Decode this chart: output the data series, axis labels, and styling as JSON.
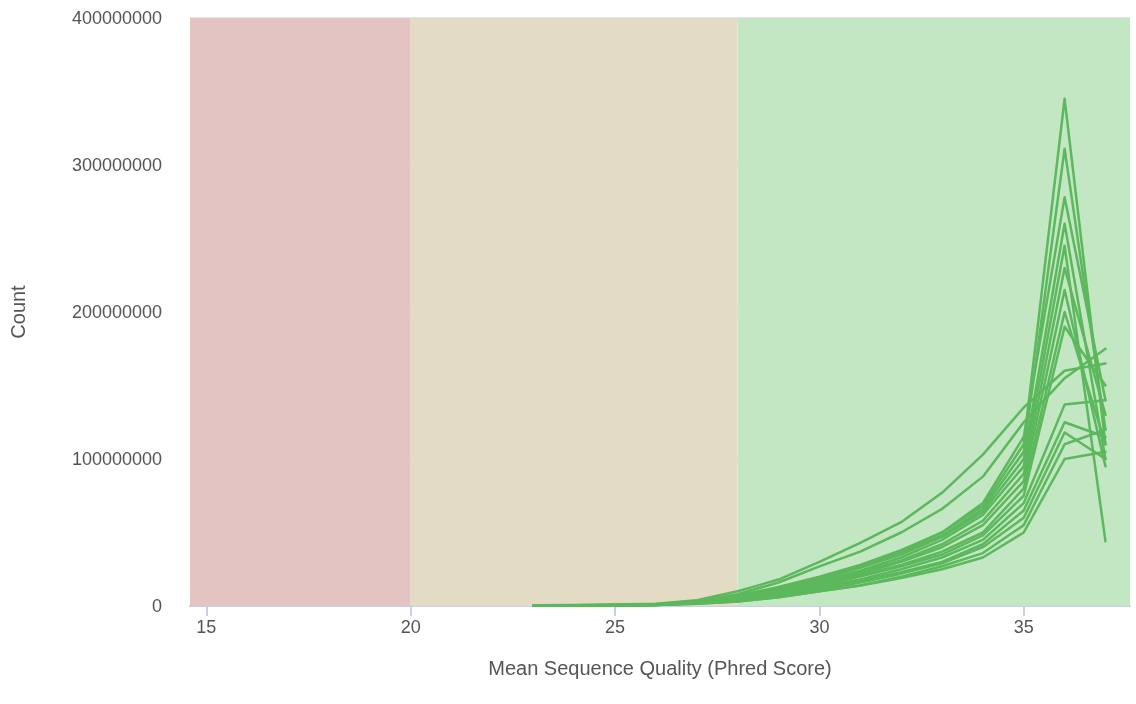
{
  "chart_data": {
    "type": "line",
    "xlabel": "Mean Sequence Quality (Phred Score)",
    "ylabel": "Count",
    "xlim": [
      14.6,
      37.6
    ],
    "xticks": [
      15,
      20,
      25,
      30,
      35
    ],
    "ylim": [
      0,
      400000000
    ],
    "yticks": [
      0,
      100000000,
      200000000,
      300000000,
      400000000
    ],
    "grid": "y",
    "marker": "none",
    "line_style": "solid",
    "bands": [
      {
        "axis": "x",
        "from": 14.6,
        "to": 20,
        "color": "#e4c3c3"
      },
      {
        "axis": "x",
        "from": 20,
        "to": 28,
        "color": "#e4dbc4"
      },
      {
        "axis": "x",
        "from": 28,
        "to": 37.6,
        "color": "#c3e6c3"
      }
    ],
    "x": [
      23,
      24,
      25,
      26,
      27,
      28,
      29,
      30,
      31,
      32,
      33,
      34,
      35,
      36,
      37
    ],
    "series": [
      {
        "color": "#5cb85c",
        "values": [
          300000.0,
          400000.0,
          600000.0,
          1000000.0,
          3000000.0,
          7000000.0,
          13000000.0,
          20000000.0,
          28000000.0,
          38000000.0,
          50000000.0,
          68000000.0,
          110000000.0,
          345000000.0,
          110000000.0
        ]
      },
      {
        "color": "#5cb85c",
        "values": [
          300000.0,
          400000.0,
          600000.0,
          1000000.0,
          3000000.0,
          6000000.0,
          12000000.0,
          19000000.0,
          27000000.0,
          36000000.0,
          48000000.0,
          66000000.0,
          105000000.0,
          311000000.0,
          120000000.0
        ]
      },
      {
        "color": "#5cb85c",
        "values": [
          300000.0,
          400000.0,
          600000.0,
          1000000.0,
          3000000.0,
          6000000.0,
          12000000.0,
          19000000.0,
          27000000.0,
          37000000.0,
          50000000.0,
          70000000.0,
          115000000.0,
          278000000.0,
          140000000.0
        ]
      },
      {
        "color": "#5cb85c",
        "values": [
          300000.0,
          400000.0,
          500000.0,
          1000000.0,
          2500000.0,
          6000000.0,
          11000000.0,
          18000000.0,
          26000000.0,
          35000000.0,
          47000000.0,
          64000000.0,
          100000000.0,
          260000000.0,
          100000000.0
        ]
      },
      {
        "color": "#5cb85c",
        "values": [
          300000.0,
          400000.0,
          500000.0,
          1000000.0,
          2500000.0,
          5000000.0,
          10000000.0,
          17000000.0,
          24000000.0,
          33000000.0,
          45000000.0,
          62000000.0,
          95000000.0,
          245000000.0,
          44000000.0
        ]
      },
      {
        "color": "#5cb85c",
        "values": [
          300000.0,
          400000.0,
          500000.0,
          1000000.0,
          2500000.0,
          5000000.0,
          10000000.0,
          16000000.0,
          23000000.0,
          31000000.0,
          42000000.0,
          58000000.0,
          90000000.0,
          230000000.0,
          130000000.0
        ]
      },
      {
        "color": "#5cb85c",
        "values": [
          300000.0,
          400000.0,
          500000.0,
          1000000.0,
          2500000.0,
          5000000.0,
          10000000.0,
          16000000.0,
          22000000.0,
          30000000.0,
          40000000.0,
          55000000.0,
          85000000.0,
          215000000.0,
          95000000.0
        ]
      },
      {
        "color": "#5cb85c",
        "values": [
          200000.0,
          300000.0,
          500000.0,
          800000.0,
          2000000.0,
          4000000.0,
          9000000.0,
          15000000.0,
          21000000.0,
          28000000.0,
          37000000.0,
          50000000.0,
          80000000.0,
          200000000.0,
          110000000.0
        ]
      },
      {
        "color": "#5cb85c",
        "values": [
          200000.0,
          300000.0,
          500000.0,
          800000.0,
          2000000.0,
          4000000.0,
          8000000.0,
          14000000.0,
          20000000.0,
          27000000.0,
          35000000.0,
          48000000.0,
          75000000.0,
          190000000.0,
          150000000.0
        ]
      },
      {
        "color": "#5cb85c",
        "values": [
          500000.0,
          700000.0,
          1000000.0,
          1500000.0,
          4000000.0,
          10000000.0,
          18000000.0,
          30000000.0,
          43000000.0,
          57000000.0,
          77000000.0,
          103000000.0,
          135000000.0,
          160000000.0,
          165000000.0
        ]
      },
      {
        "color": "#5cb85c",
        "values": [
          300000.0,
          500000.0,
          800000.0,
          1200000.0,
          3500000.0,
          8000000.0,
          16000000.0,
          27000000.0,
          37000000.0,
          50000000.0,
          66000000.0,
          88000000.0,
          125000000.0,
          155000000.0,
          175000000.0
        ]
      },
      {
        "color": "#5cb85c",
        "values": [
          200000.0,
          300000.0,
          400000.0,
          700000.0,
          2000000.0,
          4000000.0,
          8000000.0,
          13000000.0,
          18000000.0,
          25000000.0,
          33000000.0,
          45000000.0,
          70000000.0,
          137000000.0,
          140000000.0
        ]
      },
      {
        "color": "#5cb85c",
        "values": [
          200000.0,
          300000.0,
          400000.0,
          700000.0,
          2000000.0,
          4000000.0,
          7000000.0,
          12000000.0,
          17000000.0,
          23000000.0,
          30000000.0,
          42000000.0,
          65000000.0,
          125000000.0,
          115000000.0
        ]
      },
      {
        "color": "#5cb85c",
        "values": [
          200000.0,
          300000.0,
          400000.0,
          700000.0,
          2000000.0,
          3500000.0,
          7000000.0,
          11000000.0,
          16000000.0,
          22000000.0,
          29000000.0,
          40000000.0,
          60000000.0,
          118000000.0,
          100000000.0
        ]
      },
      {
        "color": "#5cb85c",
        "values": [
          200000.0,
          300000.0,
          400000.0,
          600000.0,
          1500000.0,
          3000000.0,
          6000000.0,
          10000000.0,
          14000000.0,
          20000000.0,
          27000000.0,
          36000000.0,
          55000000.0,
          110000000.0,
          120000000.0
        ]
      },
      {
        "color": "#5cb85c",
        "values": [
          200000.0,
          300000.0,
          400000.0,
          600000.0,
          1500000.0,
          3000000.0,
          6000000.0,
          10000000.0,
          14000000.0,
          19000000.0,
          25000000.0,
          33000000.0,
          50000000.0,
          100000000.0,
          105000000.0
        ]
      }
    ]
  }
}
